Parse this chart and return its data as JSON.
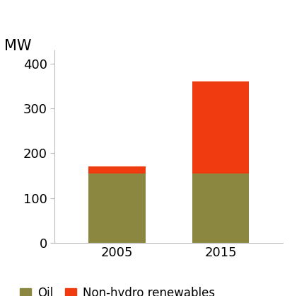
{
  "years": [
    "2005",
    "2015"
  ],
  "oil_values": [
    155,
    155
  ],
  "renewables_values": [
    15,
    205
  ],
  "oil_color": "#8b8740",
  "renewables_color": "#f03a10",
  "ylabel": "MW",
  "ylim": [
    0,
    430
  ],
  "yticks": [
    0,
    100,
    200,
    300,
    400
  ],
  "legend_oil": "Oil",
  "legend_renewables": "Non-hydro renewables",
  "bar_width": 0.55,
  "background_color": "#ffffff",
  "tick_color": "#999999",
  "spine_color": "#bbbbbb",
  "label_fontsize": 13,
  "ylabel_fontsize": 15
}
